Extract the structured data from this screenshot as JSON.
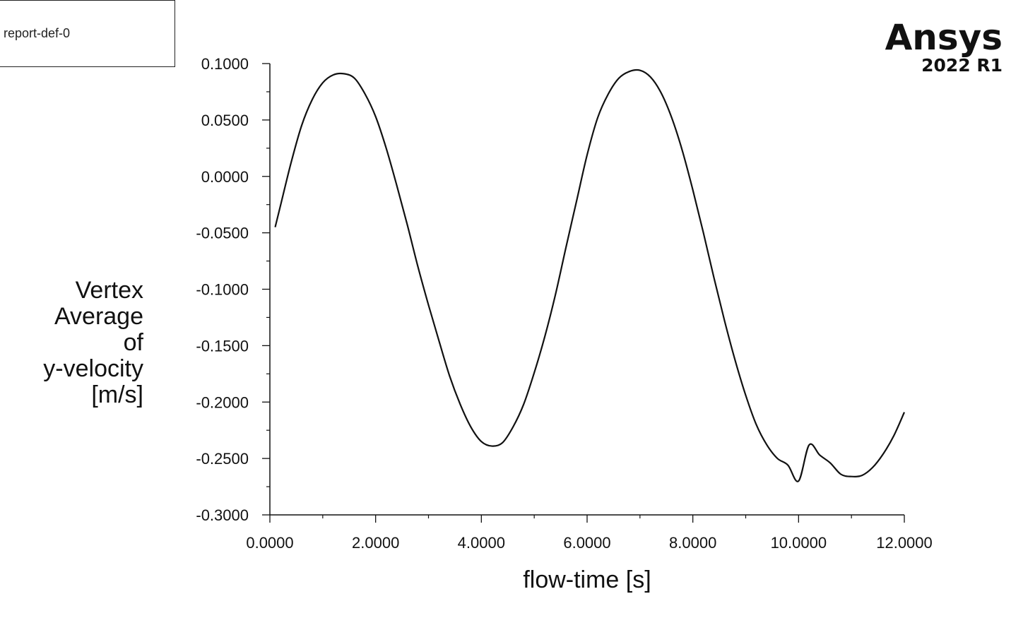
{
  "legend": {
    "label": "report-def-0"
  },
  "logo": {
    "name": "Ansys",
    "version": "2022 R1"
  },
  "chart_data": {
    "type": "line",
    "title": "",
    "xlabel": "flow-time [s]",
    "ylabel_lines": [
      "Vertex",
      "Average",
      "of",
      "y-velocity",
      "[m/s]"
    ],
    "xlim": [
      0,
      12
    ],
    "ylim": [
      -0.3,
      0.1
    ],
    "x_ticks": [
      "0.0000",
      "2.0000",
      "4.0000",
      "6.0000",
      "8.0000",
      "10.0000",
      "12.0000"
    ],
    "y_ticks": [
      "0.1000",
      "0.0500",
      "0.0000",
      "-0.0500",
      "-0.1000",
      "-0.1500",
      "-0.2000",
      "-0.2500",
      "-0.3000"
    ],
    "grid": false,
    "line_color": "#111111",
    "series": [
      {
        "name": "report-def-0",
        "x": [
          0.1,
          0.2,
          0.4,
          0.6,
          0.8,
          1.0,
          1.2,
          1.4,
          1.6,
          1.8,
          2.0,
          2.2,
          2.4,
          2.6,
          2.8,
          3.0,
          3.2,
          3.4,
          3.6,
          3.8,
          4.0,
          4.2,
          4.4,
          4.6,
          4.8,
          5.0,
          5.2,
          5.4,
          5.6,
          5.8,
          6.0,
          6.2,
          6.4,
          6.6,
          6.8,
          7.0,
          7.2,
          7.4,
          7.6,
          7.8,
          8.0,
          8.2,
          8.4,
          8.6,
          8.8,
          9.0,
          9.2,
          9.4,
          9.6,
          9.8,
          10.0,
          10.2,
          10.4,
          10.6,
          10.8,
          11.0,
          11.2,
          11.4,
          11.6,
          11.8,
          12.0
        ],
        "values": [
          -0.045,
          -0.026,
          0.012,
          0.045,
          0.068,
          0.083,
          0.09,
          0.091,
          0.087,
          0.073,
          0.053,
          0.025,
          -0.008,
          -0.043,
          -0.08,
          -0.114,
          -0.146,
          -0.177,
          -0.202,
          -0.222,
          -0.235,
          -0.239,
          -0.236,
          -0.222,
          -0.202,
          -0.174,
          -0.142,
          -0.105,
          -0.063,
          -0.022,
          0.019,
          0.052,
          0.073,
          0.087,
          0.093,
          0.094,
          0.088,
          0.074,
          0.052,
          0.023,
          -0.012,
          -0.05,
          -0.09,
          -0.128,
          -0.163,
          -0.194,
          -0.22,
          -0.238,
          -0.25,
          -0.256,
          -0.27,
          -0.238,
          -0.247,
          -0.254,
          -0.264,
          -0.266,
          -0.265,
          -0.258,
          -0.246,
          -0.23,
          -0.209
        ]
      }
    ]
  }
}
